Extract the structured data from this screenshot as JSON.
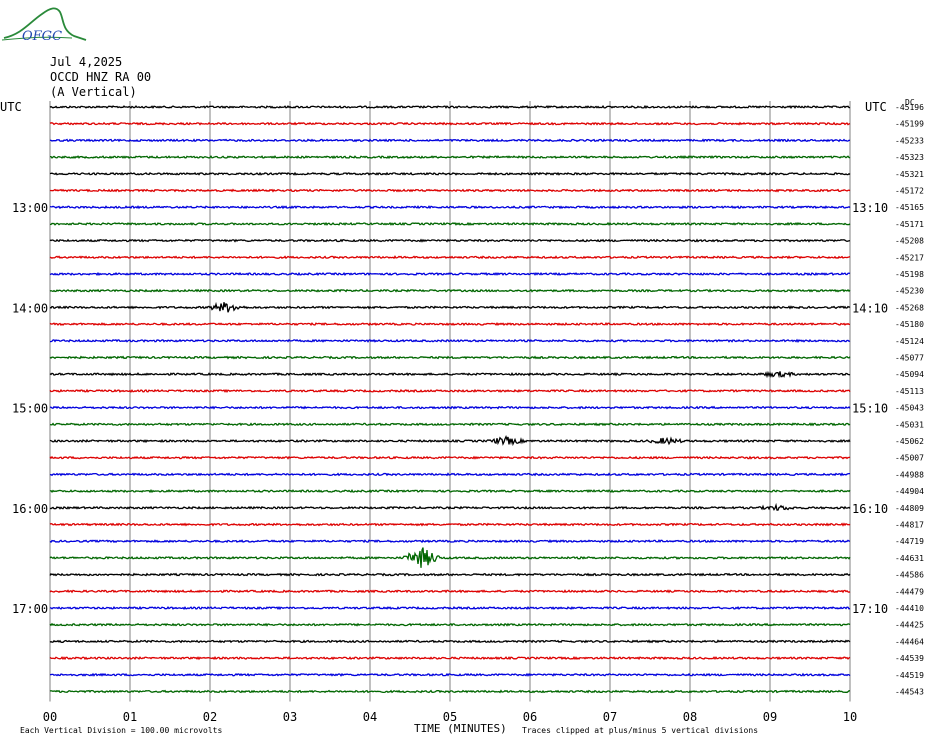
{
  "logo": {
    "text": "OFGC"
  },
  "header": {
    "date": "Jul 4,2025",
    "station": "OCCD HNZ RA 00",
    "component": "(A Vertical)"
  },
  "left_tz": "UTC",
  "right_tz": "UTC",
  "dc_label": "DC",
  "footer": {
    "division_note": "Each Vertical Division =  100.00 microvolts",
    "clip_note": "Traces clipped at plus/minus 5 vertical divisions"
  },
  "colors": {
    "trace_cycle": [
      "#000000",
      "#dd0000",
      "#0000dd",
      "#006600"
    ],
    "grid": "#808080"
  },
  "chart_data": {
    "type": "line",
    "subtype": "helicorder",
    "xlabel": "TIME (MINUTES)",
    "x_ticks": [
      "00",
      "01",
      "02",
      "03",
      "04",
      "05",
      "06",
      "07",
      "08",
      "09",
      "10"
    ],
    "xlim": [
      0,
      10
    ],
    "left_hour_labels": [
      {
        "row": 6,
        "label": "13:00"
      },
      {
        "row": 12,
        "label": "14:00"
      },
      {
        "row": 18,
        "label": "15:00"
      },
      {
        "row": 24,
        "label": "16:00"
      },
      {
        "row": 30,
        "label": "17:00"
      }
    ],
    "right_hour_labels": [
      {
        "row": 6,
        "label": "13:10"
      },
      {
        "row": 12,
        "label": "14:10"
      },
      {
        "row": 18,
        "label": "15:10"
      },
      {
        "row": 24,
        "label": "16:10"
      },
      {
        "row": 30,
        "label": "17:10"
      }
    ],
    "trace_baselines": [
      "-45196",
      "-45199",
      "-45233",
      "-45323",
      "-45321",
      "-45172",
      "-45165",
      "-45171",
      "-45208",
      "-45217",
      "-45198",
      "-45230",
      "-45268",
      "-45180",
      "-45124",
      "-45077",
      "-45094",
      "-45113",
      "-45043",
      "-45031",
      "-45062",
      "-45007",
      "-44988",
      "-44904",
      "-44809",
      "-44817",
      "-44719",
      "-44631",
      "-44586",
      "-44479",
      "-44410",
      "-44425",
      "-44464",
      "-44539",
      "-44519",
      "-44543"
    ],
    "events": [
      {
        "row": 12,
        "minute": 2.2,
        "amplitude": 2.2
      },
      {
        "row": 20,
        "minute": 5.7,
        "amplitude": 1.6
      },
      {
        "row": 20,
        "minute": 7.7,
        "amplitude": 1.2
      },
      {
        "row": 27,
        "minute": 4.65,
        "amplitude": 4.5
      },
      {
        "row": 16,
        "minute": 9.1,
        "amplitude": 1.0
      },
      {
        "row": 24,
        "minute": 9.1,
        "amplitude": 0.9
      }
    ]
  }
}
